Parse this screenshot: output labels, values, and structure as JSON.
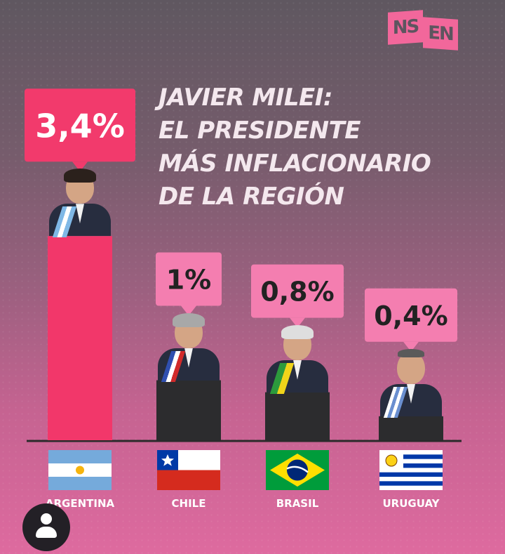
{
  "brand": {
    "logo_text_1": "NS",
    "logo_text_2": "EN"
  },
  "title_lines": [
    "JAVIER MILEI:",
    "EL PRESIDENTE",
    "MÁS INFLACIONARIO",
    "DE LA REGIÓN"
  ],
  "colors": {
    "highlight": "#f2376a",
    "label_box_highlight": "#f23a6c",
    "label_box_other": "#f47eb0",
    "bar_other": "#2c2c2e",
    "text_dark": "#222222",
    "axis": "#2a2a2a"
  },
  "chart_data": {
    "type": "bar",
    "categories": [
      "ARGENTINA",
      "CHILE",
      "BRASIL",
      "URUGUAY"
    ],
    "values": [
      3.4,
      1,
      0.8,
      0.4
    ],
    "data_labels": [
      "3,4%",
      "1%",
      "0,8%",
      "0,4%"
    ],
    "highlight_category": "ARGENTINA",
    "title": "JAVIER MILEI: EL PRESIDENTE MÁS INFLACIONARIO DE LA REGIÓN",
    "xlabel": "",
    "ylabel": "",
    "grid": false,
    "legend": "none",
    "flags": [
      "argentina-flag",
      "chile-flag",
      "brasil-flag",
      "uruguay-flag"
    ]
  },
  "footer": {
    "avatar_icon": "profile-avatar-icon"
  }
}
